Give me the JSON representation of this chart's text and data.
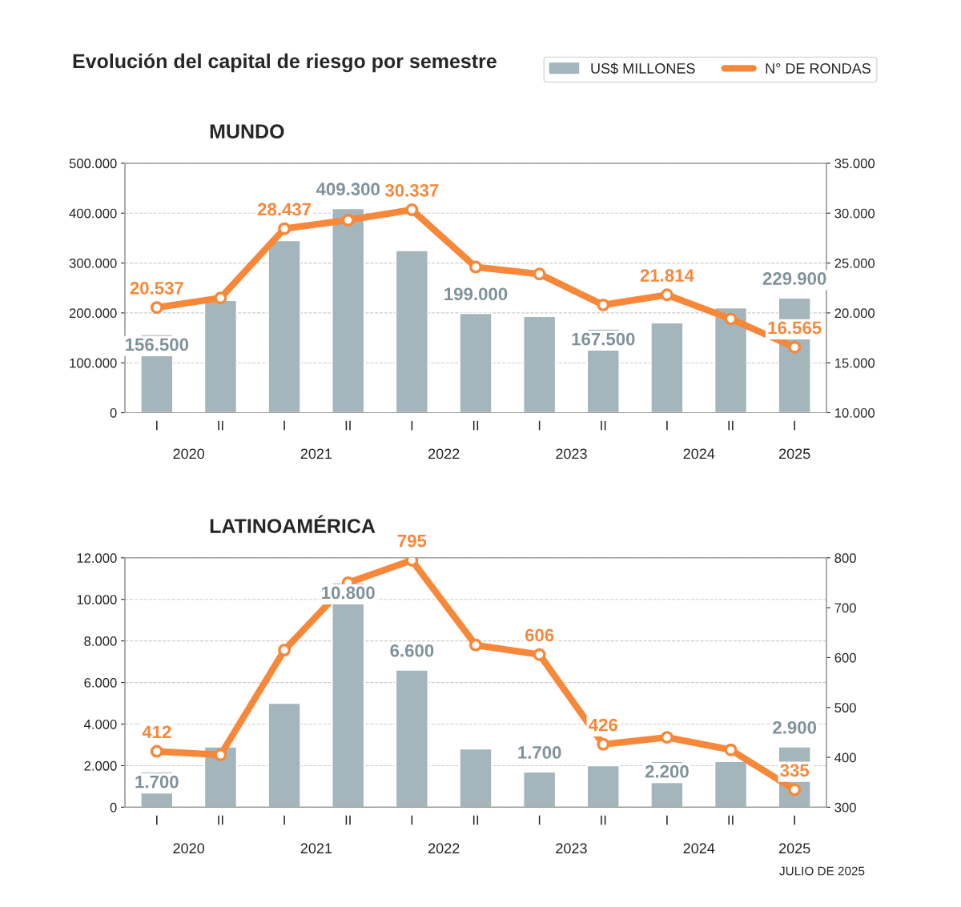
{
  "chart_data": [
    {
      "type": "bar",
      "title": "Evolución del capital de riesgo por semestre",
      "subtitle": "MUNDO",
      "categories": [
        "I",
        "II",
        "I",
        "II",
        "I",
        "II",
        "I",
        "II",
        "I",
        "II",
        "I"
      ],
      "series": [
        {
          "name": "US$ MILLONES",
          "color": "#a5b5bc",
          "values": [
            156500,
            225000,
            345000,
            409300,
            325000,
            199000,
            193000,
            167500,
            180000,
            210000,
            229900
          ],
          "value_labels": [
            "156.500",
            null,
            null,
            "409.300",
            null,
            "199.000",
            null,
            "167.500",
            null,
            null,
            "229.900"
          ]
        },
        {
          "name": "N° DE RONDAS",
          "type": "line",
          "axis": "y2",
          "color": "#f7883a",
          "values": [
            20537,
            21500,
            28437,
            29300,
            30337,
            24600,
            23900,
            20800,
            21814,
            19400,
            16565
          ],
          "value_labels": [
            "20.537",
            null,
            "28.437",
            null,
            "30.337",
            null,
            null,
            null,
            "21.814",
            null,
            "16.565"
          ]
        }
      ],
      "ylim": [
        0,
        500000
      ],
      "yticks": [
        0,
        {
          "value": 100000,
          "label": "100.000"
        },
        {
          "value": 200000,
          "label": "200.000"
        },
        {
          "value": 300000,
          "label": "300.000"
        },
        {
          "value": 400000,
          "label": "400.000"
        },
        {
          "value": 500000,
          "label": "500.000"
        }
      ],
      "y2lim": [
        10000,
        35000
      ],
      "y2ticks": [
        {
          "value": 10000,
          "label": "10.000"
        },
        {
          "value": 15000,
          "label": "15.000"
        },
        {
          "value": 20000,
          "label": "20.000"
        },
        {
          "value": 25000,
          "label": "25.000"
        },
        {
          "value": 30000,
          "label": "30.000"
        },
        {
          "value": 35000,
          "label": "35.000"
        }
      ],
      "grid": "y",
      "legend": "top right",
      "marker": "circle",
      "line_style": "solid",
      "annotations": [
        "2020",
        "2021",
        "2022",
        "2023",
        "2024",
        "2025"
      ]
    },
    {
      "type": "bar",
      "subtitle": "LATINOAMÉRICA",
      "categories": [
        "I",
        "II",
        "I",
        "II",
        "I",
        "II",
        "I",
        "II",
        "I",
        "II",
        "I"
      ],
      "series": [
        {
          "color": "#a5b5bc",
          "values": [
            1700,
            2900,
            5000,
            10800,
            6600,
            2800,
            1700,
            2000,
            2200,
            2200,
            2900
          ],
          "value_labels": [
            "1.700",
            null,
            null,
            "10.800",
            "6.600",
            null,
            "1.700",
            null,
            "2.200",
            null,
            "2.900"
          ]
        },
        {
          "type": "line",
          "axis": "y2",
          "color": "#f7883a",
          "values": [
            412,
            405,
            615,
            750,
            795,
            625,
            606,
            426,
            440,
            415,
            335
          ],
          "value_labels": [
            "412",
            null,
            null,
            null,
            "795",
            null,
            "606",
            "426",
            null,
            null,
            "335"
          ]
        }
      ],
      "ylim": [
        0,
        12000
      ],
      "yticks": [
        0,
        {
          "value": 2000,
          "label": "2.000"
        },
        {
          "value": 4000,
          "label": "4.000"
        },
        {
          "value": 6000,
          "label": "6.000"
        },
        {
          "value": 8000,
          "label": "8.000"
        },
        {
          "value": 10000,
          "label": "10.000"
        },
        {
          "value": 12000,
          "label": "12.000"
        }
      ],
      "y2lim": [
        300,
        800
      ],
      "y2ticks": [
        300,
        400,
        500,
        600,
        700,
        800
      ],
      "grid": "y",
      "marker": "circle",
      "line_style": "solid",
      "annotations": [
        "2020",
        "2021",
        "2022",
        "2023",
        "2024",
        "2025",
        "JULIO DE 2025"
      ]
    }
  ]
}
